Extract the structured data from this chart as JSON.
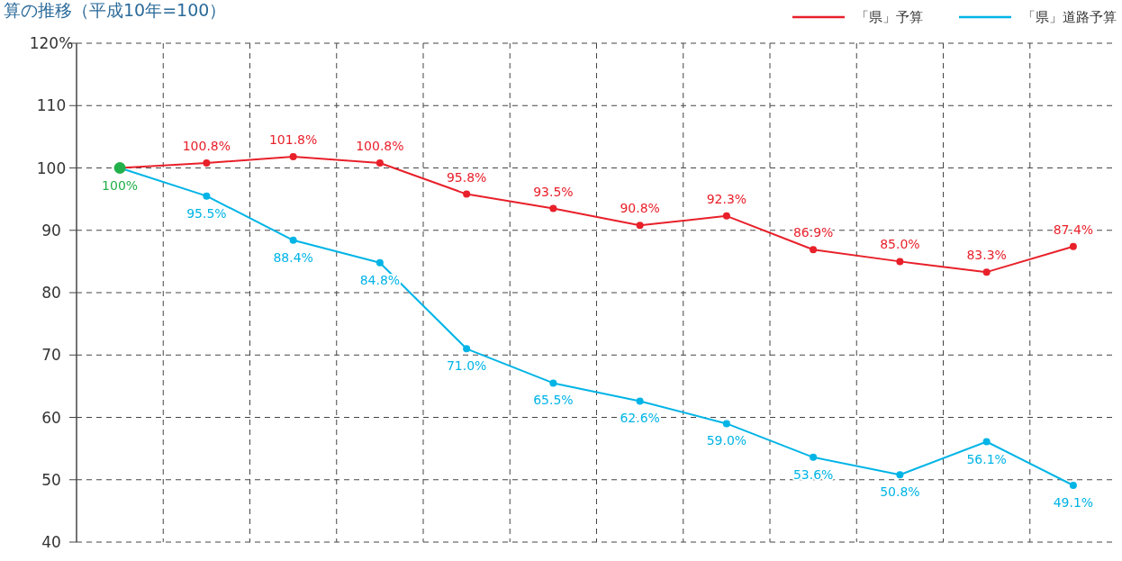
{
  "chart_data": {
    "type": "line",
    "title": "算の推移（平成10年=100）",
    "categories": [
      null,
      null,
      null,
      null,
      null,
      null,
      null,
      null,
      null,
      null,
      null,
      null
    ],
    "series": [
      {
        "name": "「県」予算",
        "color": "#e8202a",
        "values": [
          100,
          100.8,
          101.8,
          100.8,
          95.8,
          93.5,
          90.8,
          92.3,
          86.9,
          85.0,
          83.3,
          87.4
        ],
        "value_labels": [
          null,
          "100.8%",
          "101.8%",
          "100.8%",
          "95.8%",
          "93.5%",
          "90.8%",
          "92.3%",
          "86.9%",
          "85.0%",
          "83.3%",
          "87.4%"
        ]
      },
      {
        "name": "「県」道路予算",
        "color": "#00b4e6",
        "values": [
          100,
          95.5,
          88.4,
          84.8,
          71.0,
          65.5,
          62.6,
          59.0,
          53.6,
          50.8,
          56.1,
          49.1
        ],
        "value_labels": [
          null,
          "95.5%",
          "88.4%",
          "84.8%",
          "71.0%",
          "65.5%",
          "62.6%",
          "59.0%",
          "53.6%",
          "50.8%",
          "56.1%",
          "49.1%"
        ]
      },
      {
        "type": "scatter",
        "color": "#22b04a",
        "values": [
          100,
          null,
          null,
          null,
          null,
          null,
          null,
          null,
          null,
          null,
          null,
          null
        ],
        "value_labels": [
          "100%",
          null,
          null,
          null,
          null,
          null,
          null,
          null,
          null,
          null,
          null,
          null
        ]
      }
    ],
    "ylim": [
      40,
      120
    ],
    "yticks": [
      40,
      50,
      60,
      70,
      80,
      90,
      100,
      110,
      {
        "value": 120,
        "label": "120%"
      }
    ],
    "grid": true,
    "legend": "top right",
    "marker": "circle",
    "line_style": "solid"
  }
}
